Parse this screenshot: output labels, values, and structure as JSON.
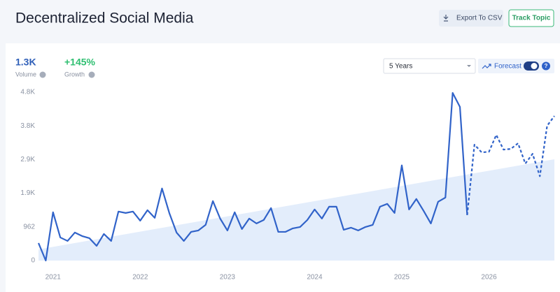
{
  "header": {
    "title": "Decentralized Social Media",
    "export_button": "Export To CSV",
    "track_button": "Track Topic"
  },
  "stats": [
    {
      "value": "1.3K",
      "label": "Volume"
    },
    {
      "value": "+145%",
      "label": "Growth"
    }
  ],
  "controls": {
    "range": "5 Years",
    "forecast": "Forecast"
  },
  "chart_data": {
    "type": "line",
    "categories": [
      null,
      null,
      "2021",
      null,
      null,
      null,
      null,
      null,
      null,
      null,
      null,
      null,
      null,
      null,
      "2022",
      null,
      null,
      null,
      null,
      null,
      null,
      null,
      null,
      null,
      null,
      null,
      "2023",
      null,
      null,
      null,
      null,
      null,
      null,
      null,
      null,
      null,
      null,
      null,
      "2024",
      null,
      null,
      null,
      null,
      null,
      null,
      null,
      null,
      null,
      null,
      null,
      "2025",
      null,
      null,
      null,
      null,
      null,
      null,
      null,
      null,
      null,
      null,
      null,
      "2026",
      null,
      null,
      null,
      null,
      null,
      null,
      null,
      null,
      null
    ],
    "series": [
      {
        "color": "#3163c9",
        "style": "solid",
        "values": [
          500,
          0,
          1380,
          660,
          560,
          800,
          700,
          640,
          420,
          760,
          560,
          1400,
          1360,
          1400,
          1140,
          1440,
          1220,
          2060,
          1360,
          800,
          560,
          820,
          860,
          1020,
          1700,
          1200,
          860,
          1380,
          900,
          1200,
          1060,
          1160,
          1500,
          820,
          820,
          920,
          960,
          1160,
          1460,
          1200,
          1540,
          1540,
          880,
          940,
          860,
          960,
          1020,
          1540,
          1620,
          1360,
          2720,
          1460,
          1760,
          1420,
          1060,
          1680,
          1800,
          4790,
          4390,
          1300,
          null,
          null,
          null,
          null,
          null,
          null,
          null,
          null,
          null,
          null,
          null,
          null
        ]
      },
      {
        "color": "#3163c9",
        "style": "dashed",
        "values": [
          null,
          null,
          null,
          null,
          null,
          null,
          null,
          null,
          null,
          null,
          null,
          null,
          null,
          null,
          null,
          null,
          null,
          null,
          null,
          null,
          null,
          null,
          null,
          null,
          null,
          null,
          null,
          null,
          null,
          null,
          null,
          null,
          null,
          null,
          null,
          null,
          null,
          null,
          null,
          null,
          null,
          null,
          null,
          null,
          null,
          null,
          null,
          null,
          null,
          null,
          null,
          null,
          null,
          null,
          null,
          null,
          null,
          null,
          null,
          1300,
          3310,
          3090,
          3110,
          3590,
          3170,
          3190,
          3350,
          2770,
          3050,
          2410,
          3850,
          4130
        ]
      }
    ],
    "trend": {
      "color": "#e3edfb",
      "values": [
        320,
        2894
      ]
    },
    "ylim": [
      0,
      4810
    ],
    "yticks": [
      0,
      962,
      {
        "value": 1924,
        "label": "1.9K"
      },
      {
        "value": 2886,
        "label": "2.9K"
      },
      {
        "value": 3848,
        "label": "3.8K"
      },
      {
        "value": 4810,
        "label": "4.8K"
      }
    ],
    "grid": false
  }
}
